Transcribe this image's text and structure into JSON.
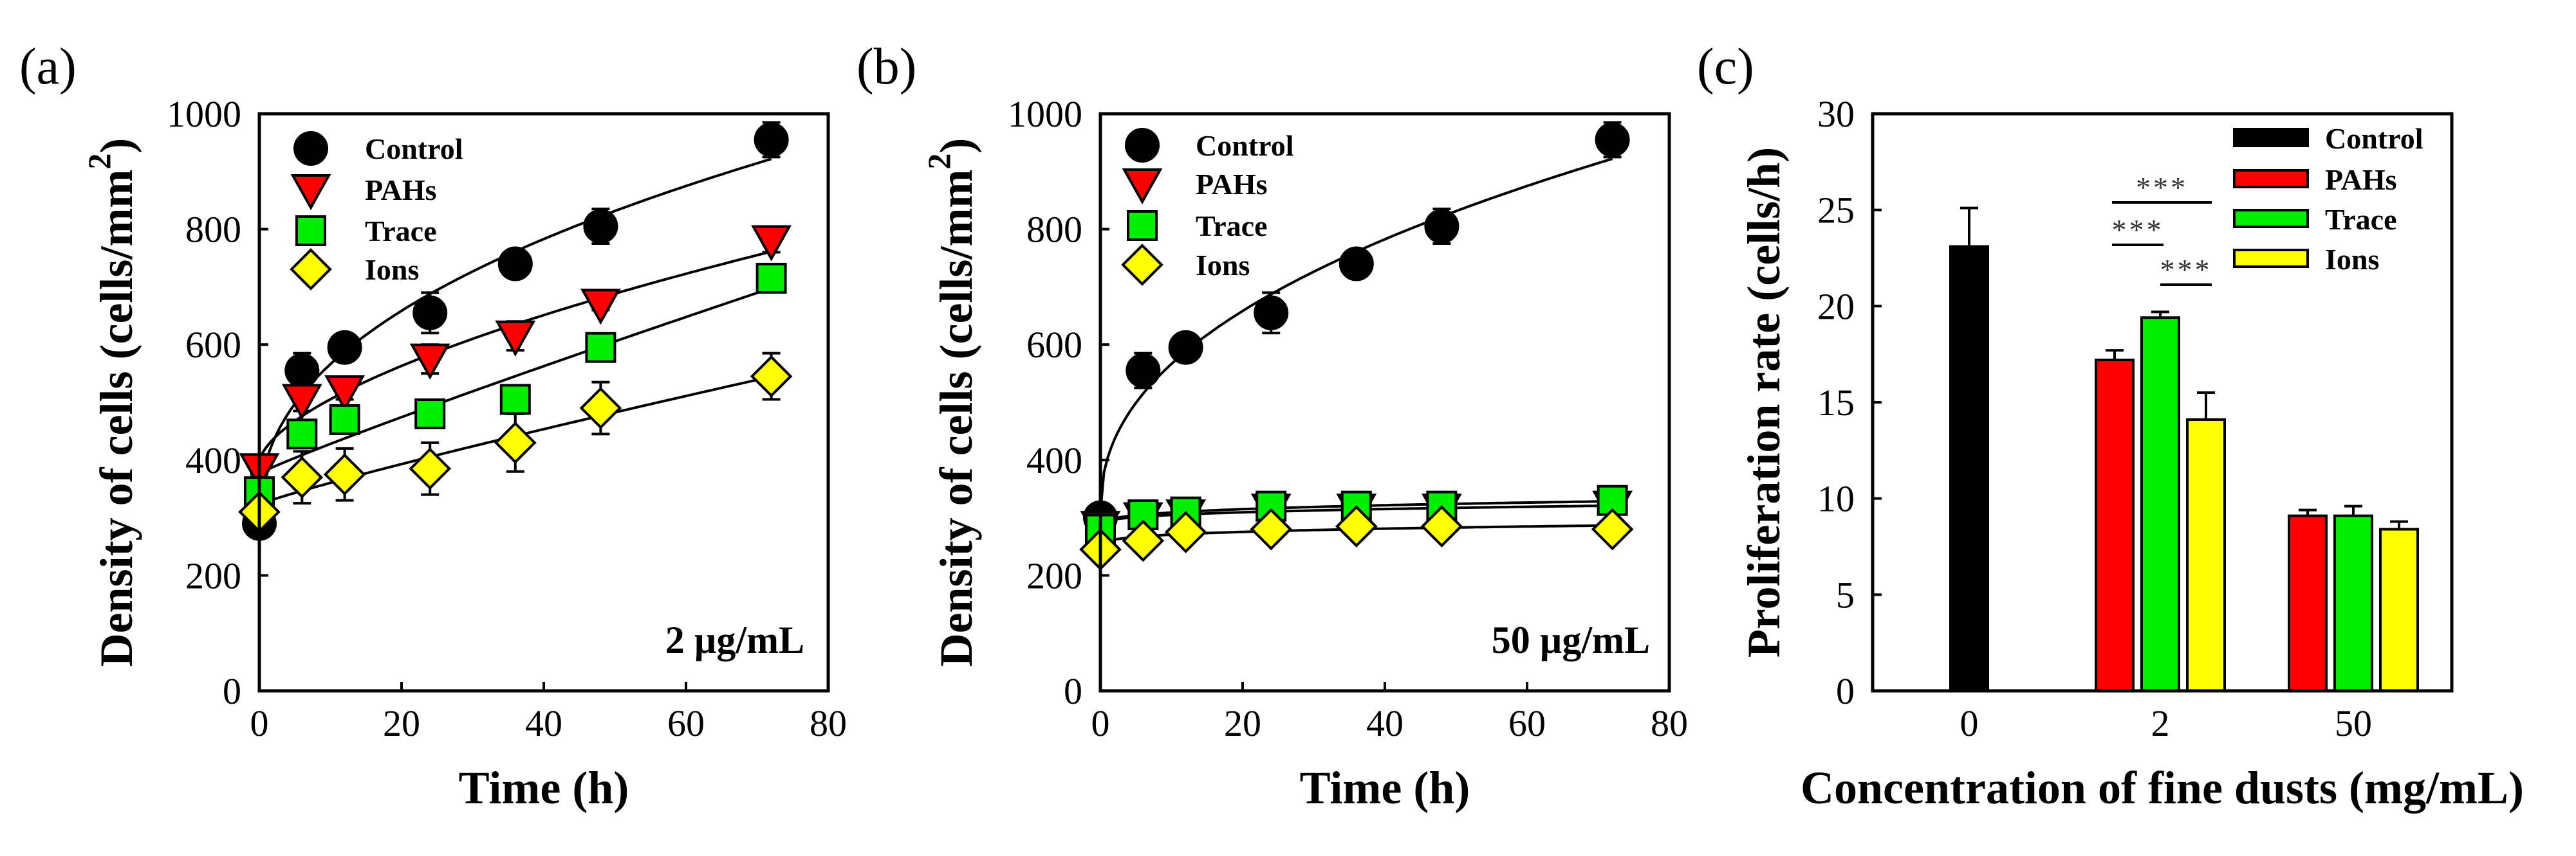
{
  "chart_data": [
    {
      "panel_label": "(a)",
      "type": "scatter",
      "annotation": "2 µg/mL",
      "xlabel": "Time (h)",
      "ylabel": "Density of cells (cells/mm",
      "ylabel_superscript": "2",
      "ylabel_close": ")",
      "xlim": [
        0,
        80
      ],
      "ylim": [
        0,
        1000
      ],
      "xticks": [
        "0",
        "20",
        "40",
        "60",
        "80"
      ],
      "yticks": [
        "0",
        "200",
        "400",
        "600",
        "800",
        "1000"
      ],
      "legend_position": "top-left",
      "series": [
        {
          "name": "Control",
          "color": "#000000",
          "marker": "circle",
          "x": [
            0,
            6,
            12,
            24,
            36,
            48,
            72
          ],
          "y": [
            290,
            555,
            595,
            655,
            740,
            805,
            955
          ],
          "err": [
            20,
            30,
            15,
            35,
            15,
            30,
            30
          ]
        },
        {
          "name": "PAHs",
          "color": "#ff0000",
          "marker": "triangle-down",
          "x": [
            0,
            6,
            12,
            24,
            36,
            48,
            72
          ],
          "y": [
            385,
            505,
            520,
            575,
            615,
            670,
            780
          ],
          "err": [
            10,
            20,
            15,
            25,
            25,
            10,
            20
          ]
        },
        {
          "name": "Trace",
          "color": "#00ee00",
          "marker": "square",
          "x": [
            0,
            6,
            12,
            24,
            36,
            48,
            72
          ],
          "y": [
            345,
            445,
            470,
            480,
            505,
            595,
            715
          ],
          "err": [
            25,
            15,
            20,
            15,
            10,
            10,
            15
          ]
        },
        {
          "name": "Ions",
          "color": "#ffff00",
          "marker": "diamond",
          "x": [
            0,
            6,
            12,
            24,
            36,
            48,
            72
          ],
          "y": [
            310,
            370,
            375,
            385,
            430,
            490,
            545
          ],
          "err": [
            20,
            45,
            45,
            45,
            50,
            45,
            40
          ]
        }
      ]
    },
    {
      "panel_label": "(b)",
      "type": "scatter",
      "annotation": "50 µg/mL",
      "xlabel": "Time (h)",
      "ylabel": "Density of cells (cells/mm",
      "ylabel_superscript": "2",
      "ylabel_close": ")",
      "xlim": [
        0,
        80
      ],
      "ylim": [
        0,
        1000
      ],
      "xticks": [
        "0",
        "20",
        "40",
        "60",
        "80"
      ],
      "yticks": [
        "0",
        "200",
        "400",
        "600",
        "800",
        "1000"
      ],
      "legend_position": "top-left",
      "series": [
        {
          "name": "Control",
          "color": "#000000",
          "marker": "circle",
          "x": [
            0,
            6,
            12,
            24,
            36,
            48,
            72
          ],
          "y": [
            300,
            555,
            595,
            655,
            740,
            805,
            955
          ],
          "err": [
            20,
            30,
            15,
            35,
            15,
            30,
            30
          ]
        },
        {
          "name": "PAHs",
          "color": "#ff0000",
          "marker": "triangle-down",
          "x": [
            0,
            6,
            12,
            24,
            36,
            48,
            72
          ],
          "y": [
            285,
            300,
            305,
            315,
            315,
            315,
            320
          ],
          "err": [
            10,
            10,
            10,
            10,
            10,
            10,
            10
          ]
        },
        {
          "name": "Trace",
          "color": "#00ee00",
          "marker": "square",
          "x": [
            0,
            6,
            12,
            24,
            36,
            48,
            72
          ],
          "y": [
            280,
            305,
            310,
            320,
            320,
            320,
            330
          ],
          "err": [
            10,
            10,
            10,
            10,
            10,
            10,
            15
          ]
        },
        {
          "name": "Ions",
          "color": "#ffff00",
          "marker": "diamond",
          "x": [
            0,
            6,
            12,
            24,
            36,
            48,
            72
          ],
          "y": [
            245,
            260,
            275,
            280,
            285,
            285,
            280
          ],
          "err": [
            10,
            10,
            15,
            10,
            10,
            10,
            15
          ]
        }
      ]
    },
    {
      "panel_label": "(c)",
      "type": "bar",
      "xlabel": "Concentration of fine dusts (mg/mL)",
      "ylabel": "Proliferation rate (cells/h)",
      "ylim": [
        0,
        30
      ],
      "yticks": [
        "0",
        "5",
        "10",
        "15",
        "20",
        "25",
        "30"
      ],
      "categories": [
        "0",
        "2",
        "50"
      ],
      "legend_position": "top-right",
      "series": [
        {
          "name": "Control",
          "color": "#000000",
          "values": [
            23.1,
            null,
            null
          ],
          "err": [
            2.0,
            null,
            null
          ]
        },
        {
          "name": "PAHs",
          "color": "#ff0000",
          "values": [
            null,
            17.2,
            9.1
          ],
          "err": [
            null,
            0.5,
            0.3
          ]
        },
        {
          "name": "Trace",
          "color": "#00ee00",
          "values": [
            null,
            19.4,
            9.1
          ],
          "err": [
            null,
            0.3,
            0.5
          ]
        },
        {
          "name": "Ions",
          "color": "#ffff00",
          "values": [
            null,
            14.1,
            8.4
          ],
          "err": [
            null,
            1.4,
            0.4
          ]
        }
      ],
      "significance": [
        {
          "category": "2",
          "from": "PAHs",
          "to": "Ions",
          "label": "***"
        },
        {
          "category": "2",
          "from": "PAHs",
          "to": "Trace",
          "label": "***"
        },
        {
          "category": "2",
          "from": "Trace",
          "to": "Ions",
          "label": "***"
        }
      ]
    }
  ]
}
